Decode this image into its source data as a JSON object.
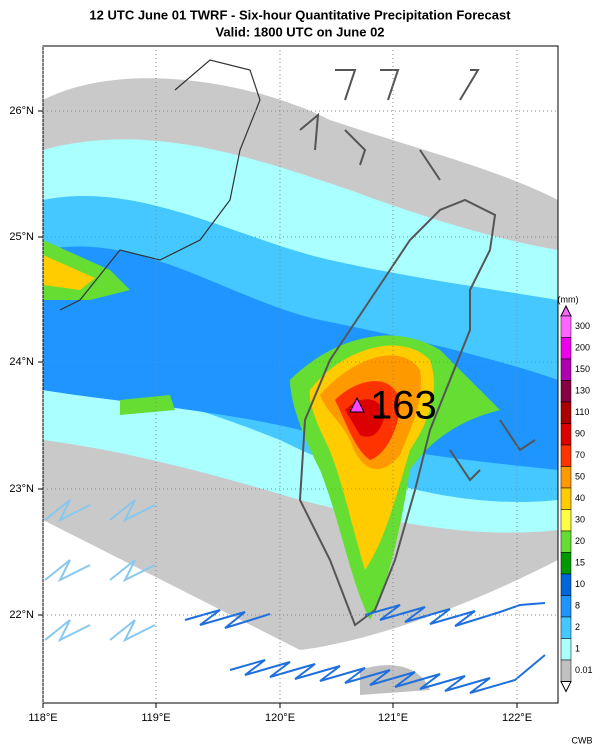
{
  "header": {
    "title": "12 UTC June 01 TWRF - Six-hour Quantitative Precipitation Forecast",
    "subtitle": "Valid: 1800 UTC on June 02"
  },
  "map": {
    "lon_ticks": [
      "118°E",
      "119°E",
      "120°E",
      "121°E",
      "122°E"
    ],
    "lat_ticks": [
      "26°N",
      "25°N",
      "24°N",
      "23°N",
      "22°N"
    ],
    "max_label": "163"
  },
  "colorbar": {
    "unit": "(mm)",
    "levels": [
      {
        "value": 300,
        "color": "#ff66ff"
      },
      {
        "value": 200,
        "color": "#ee00ee"
      },
      {
        "value": 150,
        "color": "#b000b0"
      },
      {
        "value": 130,
        "color": "#880044"
      },
      {
        "value": 110,
        "color": "#aa0000"
      },
      {
        "value": 90,
        "color": "#dd0000"
      },
      {
        "value": 70,
        "color": "#ff3300"
      },
      {
        "value": 50,
        "color": "#ff9900"
      },
      {
        "value": 40,
        "color": "#ffcc00"
      },
      {
        "value": 30,
        "color": "#ffff44"
      },
      {
        "value": 20,
        "color": "#66dd33"
      },
      {
        "value": 15,
        "color": "#009900"
      },
      {
        "value": 10,
        "color": "#0066dd"
      },
      {
        "value": 8,
        "color": "#1f95ff"
      },
      {
        "value": 2,
        "color": "#44c8ff"
      },
      {
        "value": 1,
        "color": "#aaffff"
      },
      {
        "value": 0.01,
        "color": "#c0c0c0"
      }
    ]
  },
  "footer": {
    "credit": "CWB"
  }
}
